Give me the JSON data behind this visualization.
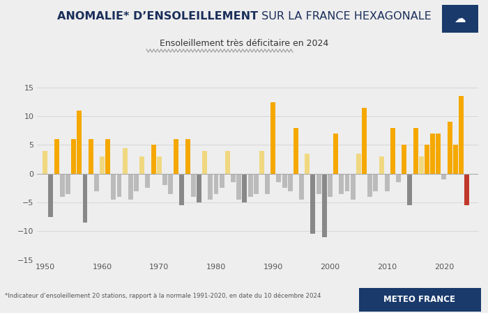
{
  "title_bold": "ANOMALIE* D’ENSOLEILLEMENT",
  "title_normal": " SUR LA FRANCE HEXAGONALE",
  "subtitle": "Ensoleillement très déficitaire en 2024",
  "footnote": "*Indicateur d’ensoleillement 20 stations, rapport à la normale 1991-2020, en date du 10 décembre 2024",
  "meteo_label": "METEO FRANCE",
  "background_color": "#eeeeee",
  "plot_bg_color": "#eeeeee",
  "ylim": [
    -15,
    15
  ],
  "yticks": [
    -15,
    -10,
    -5,
    0,
    5,
    10,
    15
  ],
  "years": [
    1950,
    1951,
    1952,
    1953,
    1954,
    1955,
    1956,
    1957,
    1958,
    1959,
    1960,
    1961,
    1962,
    1963,
    1964,
    1965,
    1966,
    1967,
    1968,
    1969,
    1970,
    1971,
    1972,
    1973,
    1974,
    1975,
    1976,
    1977,
    1978,
    1979,
    1980,
    1981,
    1982,
    1983,
    1984,
    1985,
    1986,
    1987,
    1988,
    1989,
    1990,
    1991,
    1992,
    1993,
    1994,
    1995,
    1996,
    1997,
    1998,
    1999,
    2000,
    2001,
    2002,
    2003,
    2004,
    2005,
    2006,
    2007,
    2008,
    2009,
    2010,
    2011,
    2012,
    2013,
    2014,
    2015,
    2016,
    2017,
    2018,
    2019,
    2020,
    2021,
    2022,
    2023,
    2024
  ],
  "values": [
    4.0,
    -7.5,
    6.0,
    -4.0,
    -3.5,
    6.0,
    11.0,
    -8.5,
    6.0,
    -3.0,
    3.0,
    6.0,
    -4.5,
    -4.0,
    4.5,
    -4.5,
    -3.0,
    3.0,
    -2.5,
    5.0,
    3.0,
    -2.0,
    -3.5,
    6.0,
    -5.5,
    6.0,
    -4.0,
    -5.0,
    4.0,
    -4.5,
    -3.5,
    -2.5,
    4.0,
    -1.5,
    -4.5,
    -5.0,
    -4.0,
    -3.5,
    4.0,
    -3.5,
    12.5,
    -1.5,
    -2.5,
    -3.0,
    8.0,
    -4.5,
    3.5,
    -10.5,
    -3.5,
    -11.0,
    -4.0,
    7.0,
    -3.5,
    -3.0,
    -4.5,
    3.5,
    11.5,
    -4.0,
    -3.0,
    3.0,
    -3.0,
    8.0,
    -1.5,
    5.0,
    -5.5,
    8.0,
    3.0,
    5.0,
    7.0,
    7.0,
    -1.0,
    9.0,
    5.0,
    13.5,
    -5.5
  ],
  "title_color": "#1a2e5a",
  "grid_color": "#cccccc",
  "xtick_years": [
    1950,
    1960,
    1970,
    1980,
    1990,
    2000,
    2010,
    2020
  ],
  "color_pos_strong": "#f5a800",
  "color_pos_light": "#f0d880",
  "color_neg_strong": "#888888",
  "color_neg_light": "#bbbbbb",
  "color_2024_neg": "#c0392b",
  "navy_blue": "#1a3a6b"
}
